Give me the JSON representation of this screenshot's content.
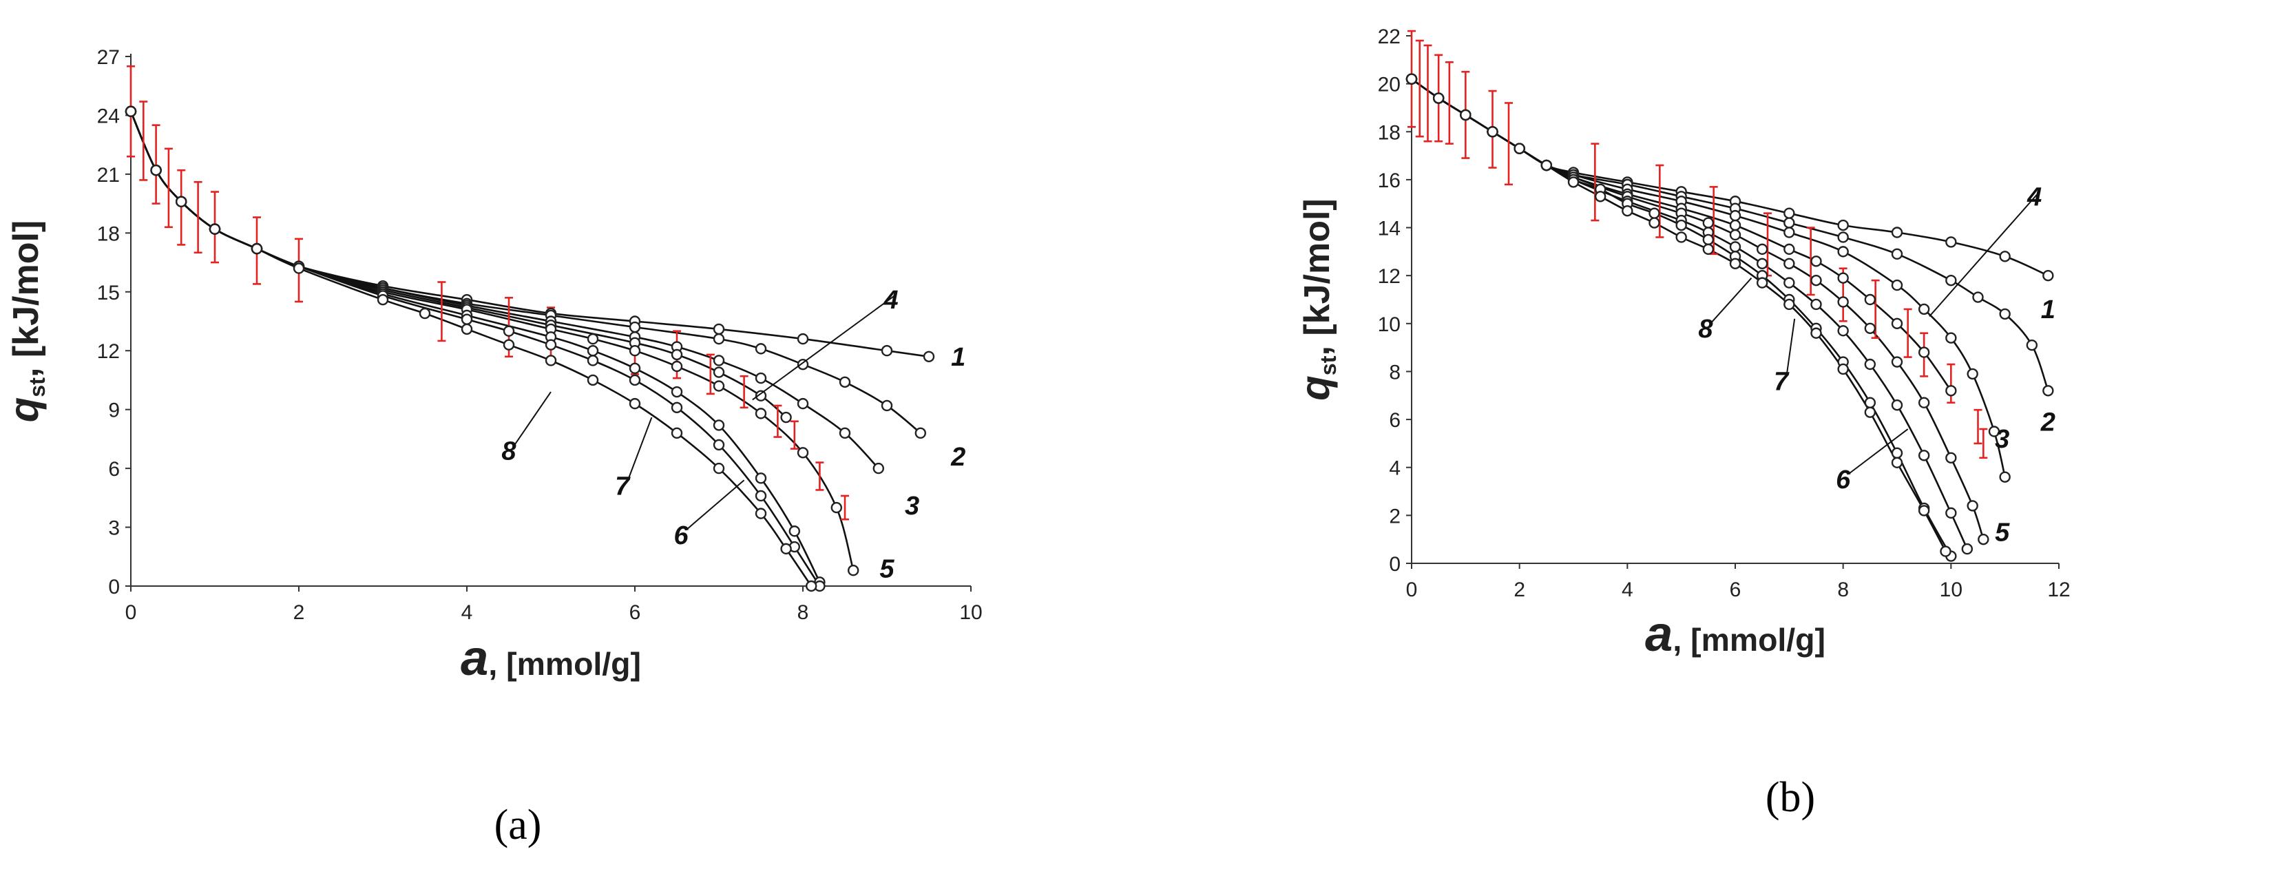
{
  "chart_data": [
    {
      "type": "line",
      "panel_label": "(a)",
      "ylabel_main": "q",
      "ylabel_sub": "st",
      "ylabel_unit": ", [kJ/mol]",
      "xlabel_main": "a",
      "xlabel_unit": ", [mmol/g]",
      "xlim": [
        0,
        10
      ],
      "ylim": [
        0,
        27
      ],
      "xticks": [
        0,
        2,
        4,
        6,
        8,
        10
      ],
      "yticks": [
        0,
        3,
        6,
        9,
        12,
        15,
        18,
        21,
        24,
        27
      ],
      "series": [
        {
          "name": "1",
          "x": [
            0,
            0.3,
            0.6,
            1.0,
            1.5,
            2.0,
            3.0,
            4.0,
            5.0,
            6.0,
            7.0,
            8.0,
            9.0,
            9.5
          ],
          "y": [
            24.2,
            21.2,
            19.6,
            18.2,
            17.2,
            16.3,
            15.3,
            14.6,
            13.9,
            13.5,
            13.1,
            12.6,
            12.0,
            11.7
          ]
        },
        {
          "name": "2",
          "x": [
            0,
            0.3,
            0.6,
            1.0,
            1.5,
            2.0,
            3.0,
            4.0,
            5.0,
            6.0,
            7.0,
            7.5,
            8.0,
            8.5,
            9.0,
            9.4
          ],
          "y": [
            24.2,
            21.2,
            19.6,
            18.2,
            17.2,
            16.3,
            15.2,
            14.4,
            13.8,
            13.2,
            12.6,
            12.1,
            11.3,
            10.4,
            9.2,
            7.8
          ]
        },
        {
          "name": "3",
          "x": [
            0,
            0.3,
            0.6,
            1.0,
            1.5,
            2.0,
            3.0,
            4.0,
            5.0,
            6.0,
            6.5,
            7.0,
            7.5,
            8.0,
            8.5,
            8.9
          ],
          "y": [
            24.2,
            21.2,
            19.6,
            18.2,
            17.2,
            16.3,
            15.2,
            14.3,
            13.5,
            12.7,
            12.2,
            11.5,
            10.6,
            9.3,
            7.8,
            6.0
          ]
        },
        {
          "name": "4",
          "x": [
            0,
            0.3,
            0.6,
            1.0,
            1.5,
            2.0,
            3.0,
            4.0,
            5.0,
            6.0,
            6.5,
            7.0,
            7.5,
            7.8
          ],
          "y": [
            24.2,
            21.2,
            19.6,
            18.2,
            17.2,
            16.3,
            15.1,
            14.2,
            13.3,
            12.4,
            11.8,
            10.9,
            9.7,
            8.6
          ]
        },
        {
          "name": "5",
          "x": [
            0,
            0.3,
            0.6,
            1.0,
            1.5,
            2.0,
            3.0,
            4.0,
            5.0,
            5.5,
            6.0,
            6.5,
            7.0,
            7.5,
            8.0,
            8.4,
            8.6
          ],
          "y": [
            24.2,
            21.2,
            19.6,
            18.2,
            17.2,
            16.3,
            15.0,
            14.1,
            13.1,
            12.6,
            12.0,
            11.2,
            10.2,
            8.8,
            6.8,
            4.0,
            0.8
          ]
        },
        {
          "name": "6",
          "x": [
            0,
            0.3,
            0.6,
            1.0,
            1.5,
            2.0,
            3.0,
            4.0,
            5.0,
            5.5,
            6.0,
            6.5,
            7.0,
            7.5,
            7.9,
            8.2
          ],
          "y": [
            24.2,
            21.2,
            19.6,
            18.2,
            17.2,
            16.3,
            14.9,
            13.8,
            12.7,
            12.0,
            11.1,
            9.9,
            8.2,
            5.5,
            2.8,
            0.2
          ]
        },
        {
          "name": "7",
          "x": [
            0,
            0.3,
            0.6,
            1.0,
            1.5,
            2.0,
            3.0,
            4.0,
            4.5,
            5.0,
            5.5,
            6.0,
            6.5,
            7.0,
            7.5,
            7.9,
            8.2
          ],
          "y": [
            24.2,
            21.2,
            19.6,
            18.2,
            17.2,
            16.3,
            14.8,
            13.6,
            13.0,
            12.3,
            11.5,
            10.5,
            9.1,
            7.2,
            4.6,
            2.0,
            0.0
          ]
        },
        {
          "name": "8",
          "x": [
            0,
            0.3,
            0.6,
            1.0,
            1.5,
            2.0,
            3.0,
            3.5,
            4.0,
            4.5,
            5.0,
            5.5,
            6.0,
            6.5,
            7.0,
            7.5,
            7.8,
            8.1
          ],
          "y": [
            24.2,
            21.2,
            19.6,
            18.2,
            17.2,
            16.2,
            14.6,
            13.9,
            13.1,
            12.3,
            11.5,
            10.5,
            9.3,
            7.8,
            6.0,
            3.7,
            1.9,
            0.0
          ]
        }
      ],
      "error_bars": [
        {
          "x": 0,
          "y": 24.2,
          "err": 2.3
        },
        {
          "x": 0.15,
          "y": 22.7,
          "err": 2.0
        },
        {
          "x": 0.3,
          "y": 21.5,
          "err": 2.0
        },
        {
          "x": 0.45,
          "y": 20.3,
          "err": 2.0
        },
        {
          "x": 0.6,
          "y": 19.3,
          "err": 1.9
        },
        {
          "x": 0.8,
          "y": 18.8,
          "err": 1.8
        },
        {
          "x": 1.0,
          "y": 18.3,
          "err": 1.8
        },
        {
          "x": 1.5,
          "y": 17.1,
          "err": 1.7
        },
        {
          "x": 2.0,
          "y": 16.1,
          "err": 1.6
        },
        {
          "x": 3.7,
          "y": 14.0,
          "err": 1.5
        },
        {
          "x": 4.5,
          "y": 13.2,
          "err": 1.5
        },
        {
          "x": 5.0,
          "y": 12.8,
          "err": 1.4
        },
        {
          "x": 6.0,
          "y": 12.1,
          "err": 1.3
        },
        {
          "x": 6.5,
          "y": 11.8,
          "err": 1.2
        },
        {
          "x": 6.9,
          "y": 10.8,
          "err": 1.0
        },
        {
          "x": 7.3,
          "y": 9.9,
          "err": 0.8
        },
        {
          "x": 7.7,
          "y": 8.4,
          "err": 0.8
        },
        {
          "x": 7.9,
          "y": 7.7,
          "err": 0.7
        },
        {
          "x": 8.2,
          "y": 5.6,
          "err": 0.7
        },
        {
          "x": 8.5,
          "y": 4.0,
          "err": 0.6
        }
      ],
      "annotations": [
        {
          "text": "1",
          "tx": 9.85,
          "ty": 11.7,
          "ax": null,
          "ay": null
        },
        {
          "text": "2",
          "tx": 9.85,
          "ty": 6.6,
          "ax": null,
          "ay": null
        },
        {
          "text": "3",
          "tx": 9.3,
          "ty": 4.1,
          "ax": null,
          "ay": null
        },
        {
          "text": "4",
          "tx": 9.05,
          "ty": 14.6,
          "ax": 7.4,
          "ay": 9.5
        },
        {
          "text": "5",
          "tx": 9.0,
          "ty": 0.9,
          "ax": null,
          "ay": null
        },
        {
          "text": "6",
          "tx": 6.55,
          "ty": 2.6,
          "ax": 7.3,
          "ay": 5.4
        },
        {
          "text": "7",
          "tx": 5.85,
          "ty": 5.1,
          "ax": 6.2,
          "ay": 8.6
        },
        {
          "text": "8",
          "tx": 4.5,
          "ty": 6.9,
          "ax": 5.0,
          "ay": 9.9
        }
      ]
    },
    {
      "type": "line",
      "panel_label": "(b)",
      "ylabel_main": "q",
      "ylabel_sub": "st",
      "ylabel_unit": ", [kJ/mol]",
      "xlabel_main": "a",
      "xlabel_unit": ", [mmol/g]",
      "xlim": [
        0,
        12
      ],
      "ylim": [
        0,
        22
      ],
      "xticks": [
        0,
        2,
        4,
        6,
        8,
        10,
        12
      ],
      "yticks": [
        0,
        2,
        4,
        6,
        8,
        10,
        12,
        14,
        16,
        18,
        20,
        22
      ],
      "series": [
        {
          "name": "1",
          "x": [
            0,
            0.5,
            1.0,
            1.5,
            2.0,
            2.5,
            3.0,
            4.0,
            5.0,
            6.0,
            7.0,
            8.0,
            9.0,
            10.0,
            11.0,
            11.8
          ],
          "y": [
            20.2,
            19.4,
            18.7,
            18.0,
            17.3,
            16.6,
            16.3,
            15.9,
            15.5,
            15.1,
            14.6,
            14.1,
            13.8,
            13.4,
            12.8,
            12.0
          ]
        },
        {
          "name": "2",
          "x": [
            0,
            0.5,
            1.0,
            1.5,
            2.0,
            2.5,
            3.0,
            4.0,
            5.0,
            6.0,
            7.0,
            8.0,
            9.0,
            10.0,
            10.5,
            11.0,
            11.5,
            11.8
          ],
          "y": [
            20.2,
            19.4,
            18.7,
            18.0,
            17.3,
            16.6,
            16.2,
            15.8,
            15.3,
            14.8,
            14.2,
            13.6,
            12.9,
            11.8,
            11.1,
            10.4,
            9.1,
            7.2
          ]
        },
        {
          "name": "3",
          "x": [
            0,
            0.5,
            1.0,
            1.5,
            2.0,
            2.5,
            3.0,
            4.0,
            5.0,
            6.0,
            7.0,
            8.0,
            9.0,
            9.5,
            10.0,
            10.4,
            10.8,
            11.0
          ],
          "y": [
            20.2,
            19.4,
            18.7,
            18.0,
            17.3,
            16.6,
            16.2,
            15.6,
            15.1,
            14.5,
            13.8,
            13.0,
            11.6,
            10.6,
            9.4,
            7.9,
            5.5,
            3.6
          ]
        },
        {
          "name": "4",
          "x": [
            0,
            0.5,
            1.0,
            1.5,
            2.0,
            2.5,
            3.0,
            4.0,
            5.0,
            6.0,
            7.0,
            7.5,
            8.0,
            8.5,
            9.0,
            9.5,
            10.0
          ],
          "y": [
            20.2,
            19.4,
            18.7,
            18.0,
            17.3,
            16.6,
            16.1,
            15.4,
            14.8,
            14.1,
            13.1,
            12.6,
            11.9,
            11.0,
            10.0,
            8.8,
            7.2
          ]
        },
        {
          "name": "5",
          "x": [
            0,
            0.5,
            1.0,
            1.5,
            2.0,
            2.5,
            3.0,
            4.0,
            5.0,
            5.5,
            6.0,
            6.5,
            7.0,
            7.5,
            8.0,
            8.5,
            9.0,
            9.5,
            10.0,
            10.4,
            10.6
          ],
          "y": [
            20.2,
            19.4,
            18.7,
            18.0,
            17.3,
            16.6,
            16.1,
            15.3,
            14.6,
            14.2,
            13.7,
            13.1,
            12.5,
            11.8,
            10.9,
            9.8,
            8.4,
            6.7,
            4.4,
            2.4,
            1.0
          ]
        },
        {
          "name": "6",
          "x": [
            0,
            0.5,
            1.0,
            1.5,
            2.0,
            2.5,
            3.0,
            4.0,
            5.0,
            5.5,
            6.0,
            6.5,
            7.0,
            7.5,
            8.0,
            8.5,
            9.0,
            9.5,
            10.0,
            10.3
          ],
          "y": [
            20.2,
            19.4,
            18.7,
            18.0,
            17.3,
            16.6,
            16.0,
            15.1,
            14.3,
            13.8,
            13.2,
            12.5,
            11.7,
            10.8,
            9.7,
            8.3,
            6.6,
            4.5,
            2.1,
            0.6
          ]
        },
        {
          "name": "7",
          "x": [
            0,
            0.5,
            1.0,
            1.5,
            2.0,
            2.5,
            3.0,
            3.5,
            4.0,
            4.5,
            5.0,
            5.5,
            6.0,
            6.5,
            7.0,
            7.5,
            8.0,
            8.5,
            9.0,
            9.5,
            10.0
          ],
          "y": [
            20.2,
            19.4,
            18.7,
            18.0,
            17.3,
            16.6,
            16.0,
            15.6,
            15.0,
            14.6,
            14.1,
            13.5,
            12.8,
            12.0,
            11.0,
            9.8,
            8.4,
            6.7,
            4.6,
            2.3,
            0.3
          ]
        },
        {
          "name": "8",
          "x": [
            0,
            0.5,
            1.0,
            1.5,
            2.0,
            2.5,
            3.0,
            3.5,
            4.0,
            4.5,
            5.0,
            5.5,
            6.0,
            6.5,
            7.0,
            7.5,
            8.0,
            8.5,
            9.0,
            9.5,
            9.9
          ],
          "y": [
            20.2,
            19.4,
            18.7,
            18.0,
            17.3,
            16.6,
            15.9,
            15.3,
            14.7,
            14.2,
            13.6,
            13.1,
            12.5,
            11.7,
            10.8,
            9.6,
            8.1,
            6.3,
            4.2,
            2.2,
            0.5
          ]
        }
      ],
      "error_bars": [
        {
          "x": 0,
          "y": 20.2,
          "err": 2.0
        },
        {
          "x": 0.15,
          "y": 19.8,
          "err": 2.0
        },
        {
          "x": 0.3,
          "y": 19.6,
          "err": 2.0
        },
        {
          "x": 0.5,
          "y": 19.4,
          "err": 1.8
        },
        {
          "x": 0.7,
          "y": 19.2,
          "err": 1.7
        },
        {
          "x": 1.0,
          "y": 18.7,
          "err": 1.8
        },
        {
          "x": 1.5,
          "y": 18.1,
          "err": 1.6
        },
        {
          "x": 1.8,
          "y": 17.5,
          "err": 1.7
        },
        {
          "x": 3.4,
          "y": 15.9,
          "err": 1.6
        },
        {
          "x": 4.6,
          "y": 15.1,
          "err": 1.5
        },
        {
          "x": 5.6,
          "y": 14.3,
          "err": 1.4
        },
        {
          "x": 6.6,
          "y": 13.3,
          "err": 1.3
        },
        {
          "x": 7.4,
          "y": 12.6,
          "err": 1.4
        },
        {
          "x": 8.0,
          "y": 11.2,
          "err": 1.1
        },
        {
          "x": 8.6,
          "y": 10.6,
          "err": 1.2
        },
        {
          "x": 9.2,
          "y": 9.6,
          "err": 1.0
        },
        {
          "x": 9.5,
          "y": 8.7,
          "err": 0.9
        },
        {
          "x": 10.0,
          "y": 7.5,
          "err": 0.8
        },
        {
          "x": 10.5,
          "y": 5.7,
          "err": 0.7
        },
        {
          "x": 10.6,
          "y": 5.0,
          "err": 0.6
        }
      ],
      "annotations": [
        {
          "text": "1",
          "tx": 11.8,
          "ty": 10.6,
          "ax": null,
          "ay": null
        },
        {
          "text": "2",
          "tx": 11.8,
          "ty": 5.9,
          "ax": null,
          "ay": null
        },
        {
          "text": "3",
          "tx": 10.95,
          "ty": 5.2,
          "ax": null,
          "ay": null
        },
        {
          "text": "4",
          "tx": 11.55,
          "ty": 15.3,
          "ax": 9.6,
          "ay": 10.3
        },
        {
          "text": "5",
          "tx": 10.95,
          "ty": 1.3,
          "ax": null,
          "ay": null
        },
        {
          "text": "6",
          "tx": 8.0,
          "ty": 3.5,
          "ax": 9.2,
          "ay": 5.6
        },
        {
          "text": "7",
          "tx": 6.85,
          "ty": 7.6,
          "ax": 7.1,
          "ay": 10.2
        },
        {
          "text": "8",
          "tx": 5.45,
          "ty": 9.8,
          "ax": 6.3,
          "ay": 11.9
        }
      ]
    }
  ]
}
